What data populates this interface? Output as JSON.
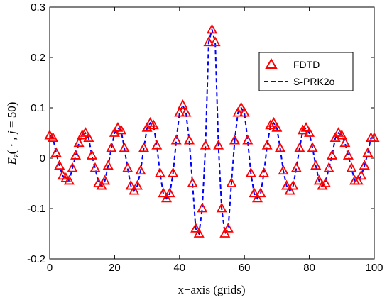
{
  "chart_data": {
    "type": "line",
    "xlabel": "x−axis (grids)",
    "ylabel": "E_z(·, j = 50)",
    "ylabel_parts": {
      "main": "E",
      "sub": "z",
      "args": "( · , ",
      "j": "j",
      "rest": " = 50)"
    },
    "xlim": [
      0,
      100
    ],
    "ylim": [
      -0.2,
      0.3
    ],
    "xticks": [
      "0",
      "20",
      "40",
      "60",
      "80",
      "100"
    ],
    "yticks": [
      "-0.2",
      "-0.1",
      "0",
      "0.1",
      "0.2",
      "0.3"
    ],
    "grid": false,
    "legend_position": "top-right",
    "legend": [
      {
        "label": "FDTD",
        "marker": "triangle",
        "color": "#ff0000"
      },
      {
        "label": "S-PRK2o",
        "line": "dashed",
        "color": "#0000ff"
      }
    ],
    "series": [
      {
        "name": "FDTD",
        "x": [
          0,
          1,
          2,
          3,
          4,
          5,
          6,
          7,
          8,
          9,
          10,
          11,
          12,
          13,
          14,
          15,
          16,
          17,
          18,
          19,
          20,
          21,
          22,
          23,
          24,
          25,
          26,
          27,
          28,
          29,
          30,
          31,
          32,
          33,
          34,
          35,
          36,
          37,
          38,
          39,
          40,
          41,
          42,
          43,
          44,
          45,
          46,
          47,
          48,
          49,
          50,
          51,
          52,
          53,
          54,
          55,
          56,
          57,
          58,
          59,
          60,
          61,
          62,
          63,
          64,
          65,
          66,
          67,
          68,
          69,
          70,
          71,
          72,
          73,
          74,
          75,
          76,
          77,
          78,
          79,
          80,
          81,
          82,
          83,
          84,
          85,
          86,
          87,
          88,
          89,
          90,
          91,
          92,
          93,
          94,
          95,
          96,
          97,
          98,
          99,
          100
        ],
        "y": [
          0.045,
          0.04,
          0.01,
          -0.015,
          -0.035,
          -0.04,
          -0.045,
          -0.02,
          0.005,
          0.03,
          0.045,
          0.05,
          0.04,
          0.005,
          -0.02,
          -0.05,
          -0.055,
          -0.045,
          -0.015,
          0.02,
          0.05,
          0.06,
          0.055,
          0.02,
          -0.02,
          -0.055,
          -0.065,
          -0.055,
          -0.025,
          0.02,
          0.06,
          0.07,
          0.065,
          0.025,
          -0.03,
          -0.07,
          -0.08,
          -0.07,
          -0.03,
          0.035,
          0.09,
          0.105,
          0.09,
          0.035,
          -0.05,
          -0.14,
          -0.15,
          -0.1,
          0.025,
          0.23,
          0.255,
          0.23,
          0.025,
          -0.1,
          -0.15,
          -0.14,
          -0.05,
          0.035,
          0.09,
          0.1,
          0.09,
          0.035,
          -0.03,
          -0.07,
          -0.08,
          -0.07,
          -0.03,
          0.025,
          0.065,
          0.07,
          0.06,
          0.02,
          -0.025,
          -0.055,
          -0.065,
          -0.055,
          -0.02,
          0.02,
          0.055,
          0.06,
          0.05,
          0.02,
          -0.015,
          -0.045,
          -0.055,
          -0.05,
          -0.02,
          0.005,
          0.04,
          0.05,
          0.045,
          0.03,
          0.005,
          -0.02,
          -0.045,
          -0.045,
          -0.035,
          -0.015,
          0.01,
          0.04,
          0.04
        ]
      },
      {
        "name": "S-PRK2o",
        "x": [
          0,
          1,
          2,
          3,
          4,
          5,
          6,
          7,
          8,
          9,
          10,
          11,
          12,
          13,
          14,
          15,
          16,
          17,
          18,
          19,
          20,
          21,
          22,
          23,
          24,
          25,
          26,
          27,
          28,
          29,
          30,
          31,
          32,
          33,
          34,
          35,
          36,
          37,
          38,
          39,
          40,
          41,
          42,
          43,
          44,
          45,
          46,
          47,
          48,
          49,
          50,
          51,
          52,
          53,
          54,
          55,
          56,
          57,
          58,
          59,
          60,
          61,
          62,
          63,
          64,
          65,
          66,
          67,
          68,
          69,
          70,
          71,
          72,
          73,
          74,
          75,
          76,
          77,
          78,
          79,
          80,
          81,
          82,
          83,
          84,
          85,
          86,
          87,
          88,
          89,
          90,
          91,
          92,
          93,
          94,
          95,
          96,
          97,
          98,
          99,
          100
        ],
        "y": [
          0.045,
          0.04,
          0.01,
          -0.015,
          -0.035,
          -0.04,
          -0.045,
          -0.02,
          0.005,
          0.03,
          0.045,
          0.05,
          0.04,
          0.005,
          -0.02,
          -0.05,
          -0.055,
          -0.045,
          -0.015,
          0.02,
          0.05,
          0.06,
          0.055,
          0.02,
          -0.02,
          -0.055,
          -0.065,
          -0.055,
          -0.025,
          0.02,
          0.06,
          0.07,
          0.065,
          0.025,
          -0.03,
          -0.07,
          -0.08,
          -0.07,
          -0.03,
          0.035,
          0.09,
          0.105,
          0.09,
          0.035,
          -0.05,
          -0.14,
          -0.15,
          -0.1,
          0.025,
          0.23,
          0.255,
          0.23,
          0.025,
          -0.1,
          -0.15,
          -0.14,
          -0.05,
          0.035,
          0.09,
          0.1,
          0.09,
          0.035,
          -0.03,
          -0.07,
          -0.08,
          -0.07,
          -0.03,
          0.025,
          0.065,
          0.07,
          0.06,
          0.02,
          -0.025,
          -0.055,
          -0.065,
          -0.055,
          -0.02,
          0.02,
          0.055,
          0.06,
          0.05,
          0.02,
          -0.015,
          -0.045,
          -0.055,
          -0.05,
          -0.02,
          0.005,
          0.04,
          0.05,
          0.045,
          0.03,
          0.005,
          -0.02,
          -0.045,
          -0.045,
          -0.035,
          -0.015,
          0.01,
          0.04,
          0.04
        ]
      }
    ]
  }
}
